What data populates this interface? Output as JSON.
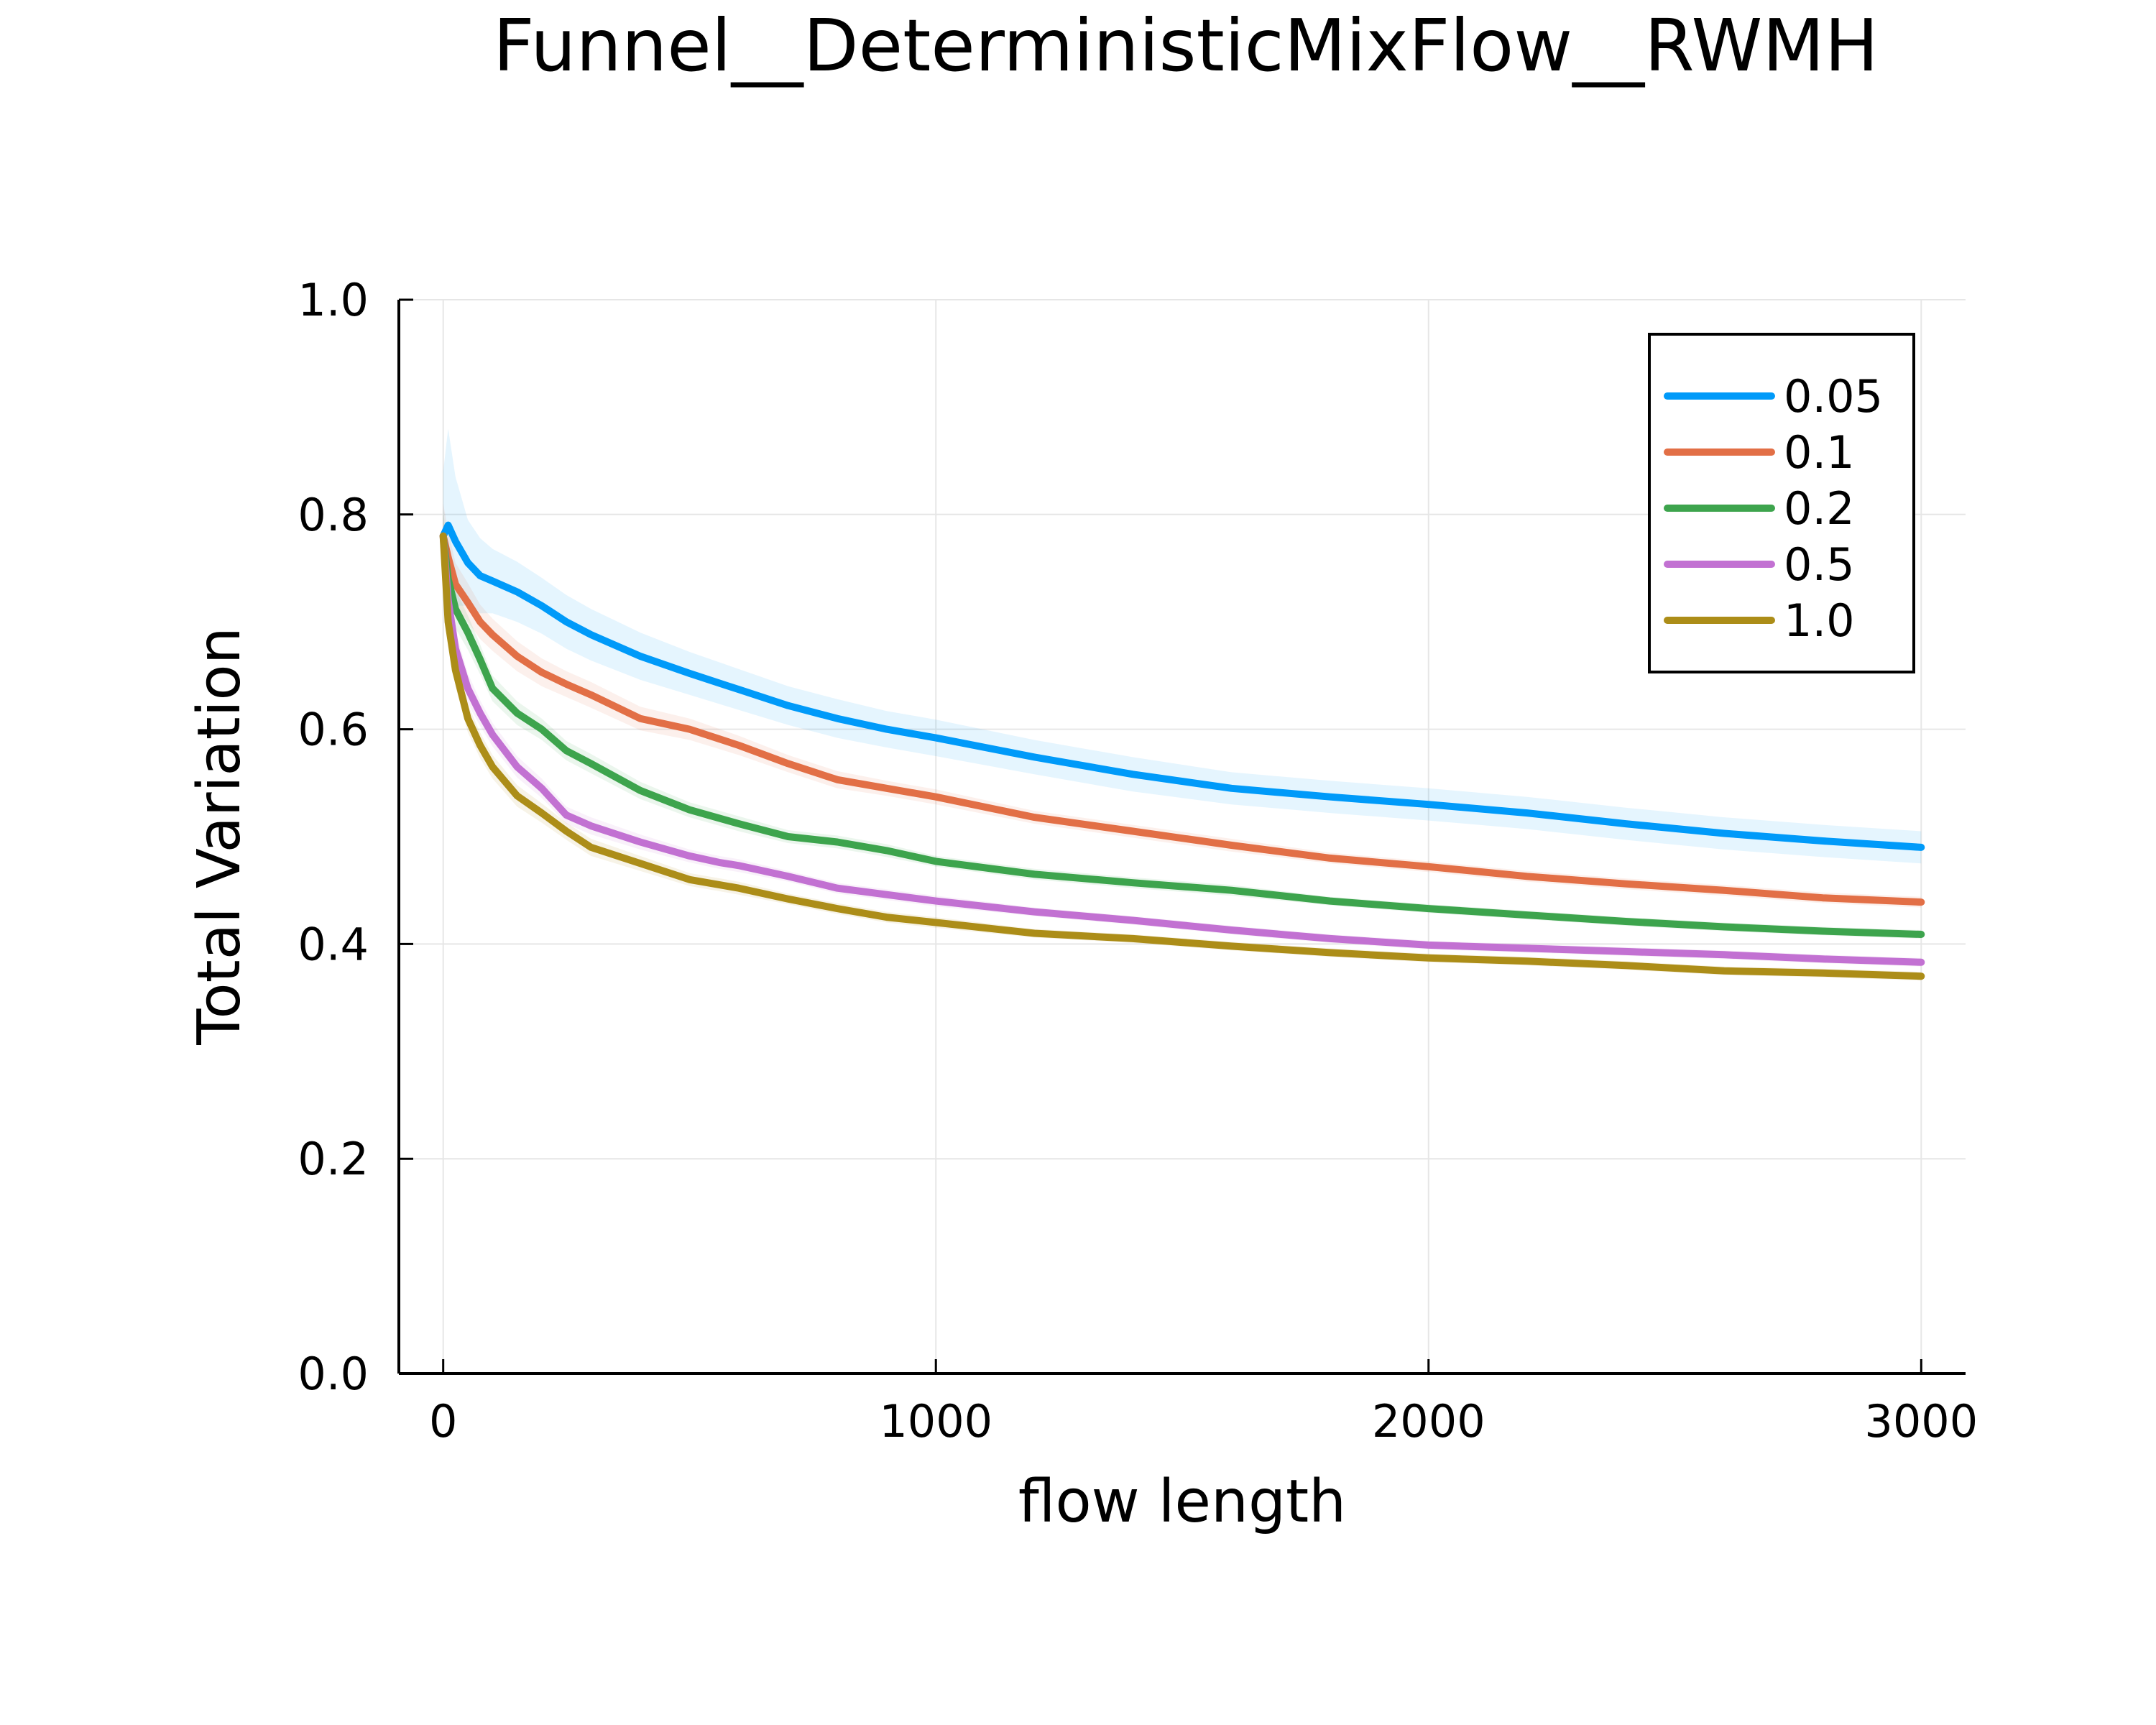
{
  "chart_data": {
    "type": "line",
    "title": "Funnel__DeterministicMixFlow__RWMH",
    "xlabel": "flow length",
    "ylabel": "Total Variation",
    "xlim": [
      -90,
      3090
    ],
    "ylim": [
      0,
      1
    ],
    "xticks": [
      0,
      1000,
      2000,
      3000
    ],
    "xtick_labels": [
      "0",
      "1000",
      "2000",
      "3000"
    ],
    "yticks": [
      0,
      0.2,
      0.4,
      0.6,
      0.8,
      1.0
    ],
    "ytick_labels": [
      "0.0",
      "0.2",
      "0.4",
      "0.6",
      "0.8",
      "1.0"
    ],
    "grid": true,
    "legend_position": "top-right",
    "series": [
      {
        "name": "0.05",
        "color": "#009af9",
        "x": [
          0,
          10,
          25,
          50,
          75,
          100,
          150,
          200,
          250,
          300,
          400,
          500,
          600,
          700,
          800,
          900,
          1000,
          1200,
          1400,
          1600,
          1800,
          2000,
          2200,
          2400,
          2600,
          2800,
          3000
        ],
        "y": [
          0.78,
          0.79,
          0.775,
          0.755,
          0.743,
          0.738,
          0.728,
          0.715,
          0.7,
          0.688,
          0.668,
          0.652,
          0.637,
          0.622,
          0.61,
          0.6,
          0.592,
          0.574,
          0.558,
          0.545,
          0.537,
          0.53,
          0.522,
          0.512,
          0.503,
          0.496,
          0.49
        ],
        "band": [
          0.06,
          0.09,
          0.06,
          0.04,
          0.035,
          0.03,
          0.028,
          0.026,
          0.025,
          0.024,
          0.022,
          0.02,
          0.019,
          0.018,
          0.018,
          0.017,
          0.017,
          0.016,
          0.016,
          0.015,
          0.015,
          0.015,
          0.015,
          0.015,
          0.015,
          0.015,
          0.015
        ]
      },
      {
        "name": "0.1",
        "color": "#e26f46",
        "x": [
          0,
          10,
          25,
          50,
          75,
          100,
          150,
          200,
          250,
          300,
          400,
          500,
          600,
          700,
          800,
          900,
          1000,
          1200,
          1400,
          1600,
          1800,
          2000,
          2200,
          2400,
          2600,
          2800,
          3000
        ],
        "y": [
          0.78,
          0.76,
          0.735,
          0.718,
          0.7,
          0.688,
          0.668,
          0.653,
          0.642,
          0.632,
          0.61,
          0.6,
          0.585,
          0.568,
          0.553,
          0.545,
          0.537,
          0.518,
          0.505,
          0.492,
          0.48,
          0.472,
          0.463,
          0.456,
          0.45,
          0.443,
          0.439
        ],
        "band": [
          0.03,
          0.025,
          0.02,
          0.018,
          0.016,
          0.015,
          0.014,
          0.013,
          0.012,
          0.012,
          0.011,
          0.01,
          0.009,
          0.008,
          0.008,
          0.007,
          0.007,
          0.006,
          0.006,
          0.006,
          0.005,
          0.005,
          0.005,
          0.005,
          0.005,
          0.005,
          0.005
        ]
      },
      {
        "name": "0.2",
        "color": "#3da44d",
        "x": [
          0,
          10,
          25,
          50,
          75,
          100,
          150,
          200,
          250,
          300,
          400,
          500,
          600,
          700,
          800,
          900,
          1000,
          1200,
          1400,
          1600,
          1800,
          2000,
          2200,
          2400,
          2600,
          2800,
          3000
        ],
        "y": [
          0.78,
          0.74,
          0.712,
          0.69,
          0.665,
          0.638,
          0.615,
          0.6,
          0.58,
          0.568,
          0.543,
          0.525,
          0.512,
          0.5,
          0.495,
          0.487,
          0.477,
          0.465,
          0.457,
          0.45,
          0.44,
          0.433,
          0.427,
          0.421,
          0.416,
          0.412,
          0.409
        ],
        "band": [
          0.025,
          0.02,
          0.018,
          0.016,
          0.014,
          0.012,
          0.011,
          0.01,
          0.009,
          0.009,
          0.008,
          0.007,
          0.007,
          0.006,
          0.006,
          0.006,
          0.005,
          0.005,
          0.005,
          0.005,
          0.004,
          0.004,
          0.004,
          0.004,
          0.004,
          0.004,
          0.004
        ]
      },
      {
        "name": "0.5",
        "color": "#c271d2",
        "x": [
          0,
          10,
          25,
          50,
          75,
          100,
          150,
          200,
          250,
          300,
          400,
          500,
          550,
          560,
          600,
          700,
          800,
          900,
          1000,
          1200,
          1400,
          1600,
          1800,
          2000,
          2200,
          2400,
          2600,
          2800,
          3000
        ],
        "y": [
          0.78,
          0.72,
          0.675,
          0.638,
          0.615,
          0.595,
          0.565,
          0.545,
          0.52,
          0.51,
          0.495,
          0.482,
          0.477,
          0.476,
          0.473,
          0.463,
          0.452,
          0.446,
          0.44,
          0.43,
          0.422,
          0.413,
          0.405,
          0.399,
          0.396,
          0.393,
          0.39,
          0.386,
          0.383
        ],
        "band": [
          0.02,
          0.018,
          0.016,
          0.014,
          0.012,
          0.011,
          0.01,
          0.009,
          0.008,
          0.008,
          0.007,
          0.006,
          0.006,
          0.006,
          0.006,
          0.005,
          0.005,
          0.005,
          0.005,
          0.004,
          0.004,
          0.004,
          0.004,
          0.004,
          0.004,
          0.004,
          0.004,
          0.004,
          0.004
        ]
      },
      {
        "name": "1.0",
        "color": "#ac8d18",
        "x": [
          0,
          10,
          25,
          50,
          75,
          100,
          150,
          200,
          250,
          300,
          400,
          500,
          600,
          700,
          800,
          900,
          1000,
          1200,
          1400,
          1600,
          1800,
          2000,
          2200,
          2400,
          2600,
          2800,
          3000
        ],
        "y": [
          0.78,
          0.7,
          0.655,
          0.61,
          0.585,
          0.565,
          0.538,
          0.522,
          0.505,
          0.49,
          0.475,
          0.46,
          0.452,
          0.442,
          0.433,
          0.425,
          0.42,
          0.41,
          0.405,
          0.398,
          0.392,
          0.387,
          0.384,
          0.38,
          0.375,
          0.373,
          0.37
        ],
        "band": [
          0.02,
          0.017,
          0.015,
          0.013,
          0.012,
          0.011,
          0.01,
          0.009,
          0.008,
          0.008,
          0.007,
          0.006,
          0.006,
          0.005,
          0.005,
          0.005,
          0.005,
          0.004,
          0.004,
          0.004,
          0.004,
          0.004,
          0.004,
          0.004,
          0.004,
          0.004,
          0.004
        ]
      }
    ]
  }
}
